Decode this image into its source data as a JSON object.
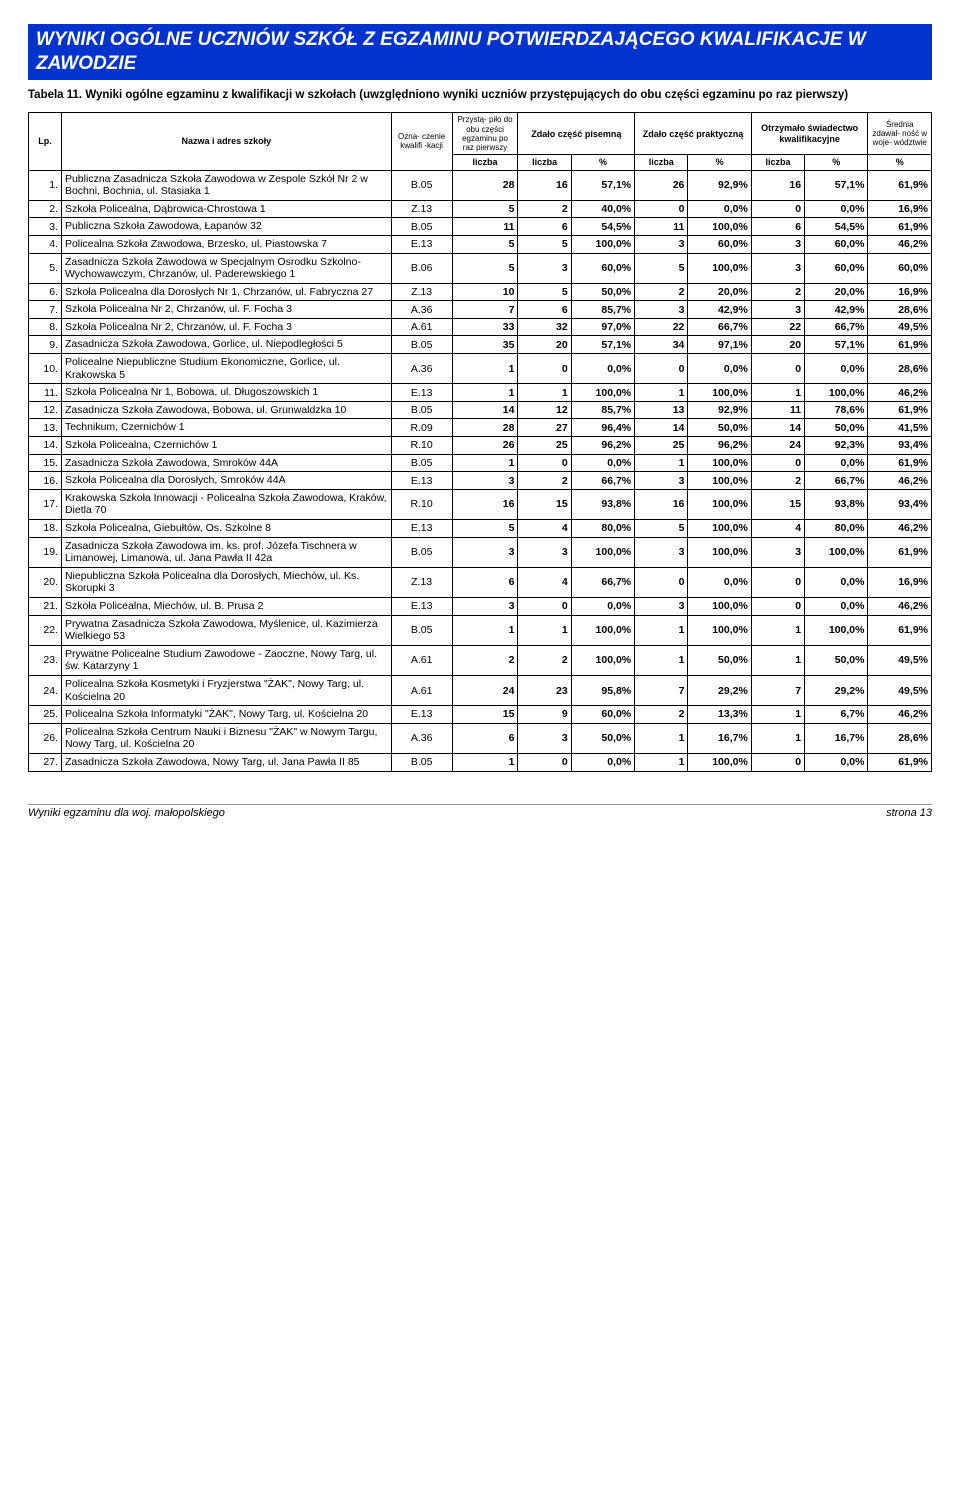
{
  "banner": "WYNIKI OGÓLNE UCZNIÓW SZKÓŁ Z EGZAMINU POTWIERDZAJĄCEGO KWALIFIKACJE W ZAWODZIE",
  "caption": "Tabela 11.  Wyniki ogólne egzaminu z kwalifikacji w szkołach (uwzględniono wyniki uczniów przystępujących do obu części egzaminu po raz pierwszy)",
  "headers": {
    "lp": "Lp.",
    "name": "Nazwa i adres szkoły",
    "code": "Ozna-\nczenie\nkwalifi\n-kacji",
    "pril": "Przystą-\npiło do\nobu części\negzaminu\npo raz\npierwszy",
    "pis": "Zdało\nczęść pisemną",
    "prak": "Zdało\nczęść praktyczną",
    "sw": "Otrzymało\nświadectwo\nkwalifikacyjne",
    "avg": "Średnia\nzdawal-\nność\nw woje-\nwództwie",
    "liczba": "liczba",
    "pct": "%"
  },
  "rows": [
    {
      "lp": "1.",
      "name": "Publiczna Zasadnicza Szkoła Zawodowa w Zespole Szkół Nr 2 w Bochni, Bochnia, ul. Stasiaka 1",
      "code": "B.05",
      "pril": "28",
      "pis_l": "16",
      "pis_p": "57,1%",
      "prak_l": "26",
      "prak_p": "92,9%",
      "sw_l": "16",
      "sw_p": "57,1%",
      "avg": "61,9%"
    },
    {
      "lp": "2.",
      "name": "Szkoła Policealna, Dąbrowica-Chrostowa 1",
      "code": "Z.13",
      "pril": "5",
      "pis_l": "2",
      "pis_p": "40,0%",
      "prak_l": "0",
      "prak_p": "0,0%",
      "sw_l": "0",
      "sw_p": "0,0%",
      "avg": "16,9%"
    },
    {
      "lp": "3.",
      "name": "Publiczna Szkoła Zawodowa, Łapanów 32",
      "code": "B.05",
      "pril": "11",
      "pis_l": "6",
      "pis_p": "54,5%",
      "prak_l": "11",
      "prak_p": "100,0%",
      "sw_l": "6",
      "sw_p": "54,5%",
      "avg": "61,9%"
    },
    {
      "lp": "4.",
      "name": "Policealna Szkoła Zawodowa, Brzesko, ul. Piastowska 7",
      "code": "E.13",
      "pril": "5",
      "pis_l": "5",
      "pis_p": "100,0%",
      "prak_l": "3",
      "prak_p": "60,0%",
      "sw_l": "3",
      "sw_p": "60,0%",
      "avg": "46,2%"
    },
    {
      "lp": "5.",
      "name": "Zasadnicza Szkoła Zawodowa w Specjalnym Osrodku Szkolno-Wychowawczym, Chrzanów, ul. Paderewskiego 1",
      "code": "B.06",
      "pril": "5",
      "pis_l": "3",
      "pis_p": "60,0%",
      "prak_l": "5",
      "prak_p": "100,0%",
      "sw_l": "3",
      "sw_p": "60,0%",
      "avg": "60,0%"
    },
    {
      "lp": "6.",
      "name": "Szkoła Policealna dla Dorosłych Nr 1, Chrzanów, ul. Fabryczna 27",
      "code": "Z.13",
      "pril": "10",
      "pis_l": "5",
      "pis_p": "50,0%",
      "prak_l": "2",
      "prak_p": "20,0%",
      "sw_l": "2",
      "sw_p": "20,0%",
      "avg": "16,9%"
    },
    {
      "lp": "7.",
      "name": "Szkoła Policealna Nr 2, Chrzanów, ul. F. Focha 3",
      "code": "A.36",
      "pril": "7",
      "pis_l": "6",
      "pis_p": "85,7%",
      "prak_l": "3",
      "prak_p": "42,9%",
      "sw_l": "3",
      "sw_p": "42,9%",
      "avg": "28,6%"
    },
    {
      "lp": "8.",
      "name": "Szkoła Policealna Nr 2, Chrzanów, ul. F. Focha 3",
      "code": "A.61",
      "pril": "33",
      "pis_l": "32",
      "pis_p": "97,0%",
      "prak_l": "22",
      "prak_p": "66,7%",
      "sw_l": "22",
      "sw_p": "66,7%",
      "avg": "49,5%"
    },
    {
      "lp": "9.",
      "name": "Zasadnicza Szkoła Zawodowa, Gorlice, ul. Niepodległości 5",
      "code": "B.05",
      "pril": "35",
      "pis_l": "20",
      "pis_p": "57,1%",
      "prak_l": "34",
      "prak_p": "97,1%",
      "sw_l": "20",
      "sw_p": "57,1%",
      "avg": "61,9%"
    },
    {
      "lp": "10.",
      "name": "Policealne Niepubliczne Studium Ekonomiczne, Gorlice, ul. Krakowska 5",
      "code": "A.36",
      "pril": "1",
      "pis_l": "0",
      "pis_p": "0,0%",
      "prak_l": "0",
      "prak_p": "0,0%",
      "sw_l": "0",
      "sw_p": "0,0%",
      "avg": "28,6%"
    },
    {
      "lp": "11.",
      "name": "Szkoła Policealna Nr 1, Bobowa, ul. Długoszowskich 1",
      "code": "E.13",
      "pril": "1",
      "pis_l": "1",
      "pis_p": "100,0%",
      "prak_l": "1",
      "prak_p": "100,0%",
      "sw_l": "1",
      "sw_p": "100,0%",
      "avg": "46,2%"
    },
    {
      "lp": "12.",
      "name": "Zasadnicza Szkoła Zawodowa, Bobowa, ul. Grunwaldzka 10",
      "code": "B.05",
      "pril": "14",
      "pis_l": "12",
      "pis_p": "85,7%",
      "prak_l": "13",
      "prak_p": "92,9%",
      "sw_l": "11",
      "sw_p": "78,6%",
      "avg": "61,9%"
    },
    {
      "lp": "13.",
      "name": "Technikum, Czernichów 1",
      "code": "R.09",
      "pril": "28",
      "pis_l": "27",
      "pis_p": "96,4%",
      "prak_l": "14",
      "prak_p": "50,0%",
      "sw_l": "14",
      "sw_p": "50,0%",
      "avg": "41,5%"
    },
    {
      "lp": "14.",
      "name": "Szkoła Policealna, Czernichów 1",
      "code": "R.10",
      "pril": "26",
      "pis_l": "25",
      "pis_p": "96,2%",
      "prak_l": "25",
      "prak_p": "96,2%",
      "sw_l": "24",
      "sw_p": "92,3%",
      "avg": "93,4%"
    },
    {
      "lp": "15.",
      "name": "Zasadnicza Szkoła Zawodowa, Smroków 44A",
      "code": "B.05",
      "pril": "1",
      "pis_l": "0",
      "pis_p": "0,0%",
      "prak_l": "1",
      "prak_p": "100,0%",
      "sw_l": "0",
      "sw_p": "0,0%",
      "avg": "61,9%"
    },
    {
      "lp": "16.",
      "name": "Szkoła Policealna dla Dorosłych, Smroków 44A",
      "code": "E.13",
      "pril": "3",
      "pis_l": "2",
      "pis_p": "66,7%",
      "prak_l": "3",
      "prak_p": "100,0%",
      "sw_l": "2",
      "sw_p": "66,7%",
      "avg": "46,2%"
    },
    {
      "lp": "17.",
      "name": "Krakowska Szkoła Innowacji - Policealna Szkoła Zawodowa, Kraków, Dietla 70",
      "code": "R.10",
      "pril": "16",
      "pis_l": "15",
      "pis_p": "93,8%",
      "prak_l": "16",
      "prak_p": "100,0%",
      "sw_l": "15",
      "sw_p": "93,8%",
      "avg": "93,4%"
    },
    {
      "lp": "18.",
      "name": "Szkoła Policealna, Giebułtów, Os. Szkolne 8",
      "code": "E.13",
      "pril": "5",
      "pis_l": "4",
      "pis_p": "80,0%",
      "prak_l": "5",
      "prak_p": "100,0%",
      "sw_l": "4",
      "sw_p": "80,0%",
      "avg": "46,2%"
    },
    {
      "lp": "19.",
      "name": "Zasadnicza Szkoła Zawodowa im. ks. prof. Józefa Tischnera w Limanowej, Limanowa, ul. Jana Pawła II 42a",
      "code": "B.05",
      "pril": "3",
      "pis_l": "3",
      "pis_p": "100,0%",
      "prak_l": "3",
      "prak_p": "100,0%",
      "sw_l": "3",
      "sw_p": "100,0%",
      "avg": "61,9%"
    },
    {
      "lp": "20.",
      "name": "Niepubliczna Szkoła Policealna dla Dorosłych, Miechów, ul. Ks. Skorupki 3",
      "code": "Z.13",
      "pril": "6",
      "pis_l": "4",
      "pis_p": "66,7%",
      "prak_l": "0",
      "prak_p": "0,0%",
      "sw_l": "0",
      "sw_p": "0,0%",
      "avg": "16,9%"
    },
    {
      "lp": "21.",
      "name": "Szkoła Policealna, Miechów, ul. B. Prusa 2",
      "code": "E.13",
      "pril": "3",
      "pis_l": "0",
      "pis_p": "0,0%",
      "prak_l": "3",
      "prak_p": "100,0%",
      "sw_l": "0",
      "sw_p": "0,0%",
      "avg": "46,2%"
    },
    {
      "lp": "22.",
      "name": "Prywatna Zasadnicza Szkoła Zawodowa, Myślenice, ul. Kazimierza Wielkiego 53",
      "code": "B.05",
      "pril": "1",
      "pis_l": "1",
      "pis_p": "100,0%",
      "prak_l": "1",
      "prak_p": "100,0%",
      "sw_l": "1",
      "sw_p": "100,0%",
      "avg": "61,9%"
    },
    {
      "lp": "23.",
      "name": "Prywatne Policealne Studium Zawodowe - Zaoczne, Nowy Targ, ul. św. Katarzyny 1",
      "code": "A.61",
      "pril": "2",
      "pis_l": "2",
      "pis_p": "100,0%",
      "prak_l": "1",
      "prak_p": "50,0%",
      "sw_l": "1",
      "sw_p": "50,0%",
      "avg": "49,5%"
    },
    {
      "lp": "24.",
      "name": "Policealna Szkoła Kosmetyki i Fryzjerstwa \"ŻAK\", Nowy Targ, ul. Kościelna 20",
      "code": "A.61",
      "pril": "24",
      "pis_l": "23",
      "pis_p": "95,8%",
      "prak_l": "7",
      "prak_p": "29,2%",
      "sw_l": "7",
      "sw_p": "29,2%",
      "avg": "49,5%"
    },
    {
      "lp": "25.",
      "name": "Policealna Szkoła Informatyki \"ŻAK\", Nowy Targ, ul. Kościelna 20",
      "code": "E.13",
      "pril": "15",
      "pis_l": "9",
      "pis_p": "60,0%",
      "prak_l": "2",
      "prak_p": "13,3%",
      "sw_l": "1",
      "sw_p": "6,7%",
      "avg": "46,2%"
    },
    {
      "lp": "26.",
      "name": "Policealna Szkoła Centrum Nauki i Biznesu \"ŻAK\" w Nowym Targu, Nowy Targ, ul. Kościelna 20",
      "code": "A.36",
      "pril": "6",
      "pis_l": "3",
      "pis_p": "50,0%",
      "prak_l": "1",
      "prak_p": "16,7%",
      "sw_l": "1",
      "sw_p": "16,7%",
      "avg": "28,6%"
    },
    {
      "lp": "27.",
      "name": "Zasadnicza Szkoła Zawodowa, Nowy Targ, ul. Jana Pawła II 85",
      "code": "B.05",
      "pril": "1",
      "pis_l": "0",
      "pis_p": "0,0%",
      "prak_l": "1",
      "prak_p": "100,0%",
      "sw_l": "0",
      "sw_p": "0,0%",
      "avg": "61,9%"
    }
  ],
  "footer_left": "Wyniki egzaminu dla woj. małopolskiego",
  "footer_right": "strona 13"
}
